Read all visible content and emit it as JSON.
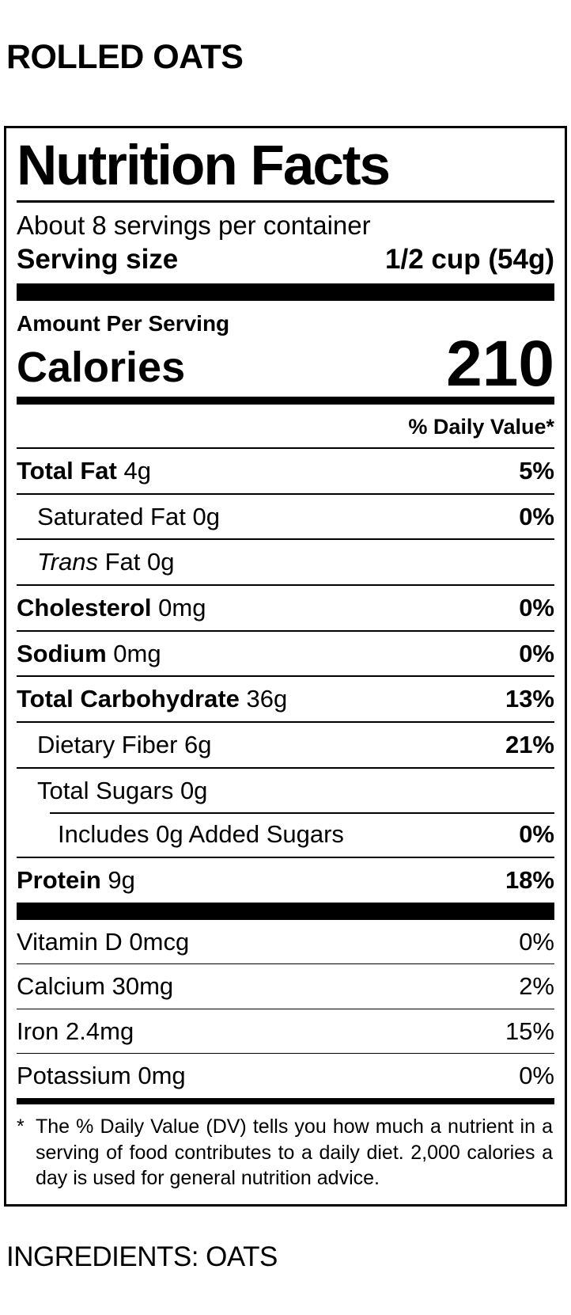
{
  "page": {
    "product_title": "ROLLED OATS",
    "ingredients": "INGREDIENTS: OATS"
  },
  "label": {
    "title": "Nutrition Facts",
    "servings_per_container": "About 8 servings per container",
    "serving_size_label": "Serving size",
    "serving_size_value": "1/2 cup (54g)",
    "amount_per_serving": "Amount Per Serving",
    "calories_label": "Calories",
    "calories_value": "210",
    "daily_value_header": "% Daily Value*",
    "nutrients": [
      {
        "name": "Total Fat",
        "amount": "4g",
        "dv": "5%",
        "indent": 0,
        "name_bold": true
      },
      {
        "name": "Saturated Fat",
        "amount": "0g",
        "dv": "0%",
        "indent": 1,
        "name_bold": false
      },
      {
        "name": "Trans",
        "amount": "Fat 0g",
        "dv": "",
        "indent": 1,
        "name_bold": false,
        "name_italic": true
      },
      {
        "name": "Cholesterol",
        "amount": "0mg",
        "dv": "0%",
        "indent": 0,
        "name_bold": true
      },
      {
        "name": "Sodium",
        "amount": "0mg",
        "dv": "0%",
        "indent": 0,
        "name_bold": true
      },
      {
        "name": "Total Carbohydrate",
        "amount": "36g",
        "dv": "13%",
        "indent": 0,
        "name_bold": true
      },
      {
        "name": "Dietary Fiber",
        "amount": "6g",
        "dv": "21%",
        "indent": 1,
        "name_bold": false
      },
      {
        "name": "Total Sugars",
        "amount": "0g",
        "dv": "",
        "indent": 1,
        "name_bold": false
      },
      {
        "name": "Includes 0g Added Sugars",
        "amount": "",
        "dv": "0%",
        "indent": 2,
        "name_bold": false,
        "sep_indent": true
      },
      {
        "name": "Protein",
        "amount": "9g",
        "dv": "18%",
        "indent": 0,
        "name_bold": true
      }
    ],
    "vitamins": [
      {
        "name": "Vitamin D",
        "amount": "0mcg",
        "dv": "0%"
      },
      {
        "name": "Calcium",
        "amount": "30mg",
        "dv": "2%"
      },
      {
        "name": "Iron",
        "amount": "2.4mg",
        "dv": "15%"
      },
      {
        "name": "Potassium",
        "amount": "0mg",
        "dv": "0%"
      }
    ],
    "footnote_marker": "*",
    "footnote": "The % Daily Value (DV) tells you how much a nutrient in a serving of food contributes to a daily diet. 2,000 calories a day is used for general nutrition advice."
  },
  "colors": {
    "ink": "#000000",
    "background": "#ffffff"
  }
}
